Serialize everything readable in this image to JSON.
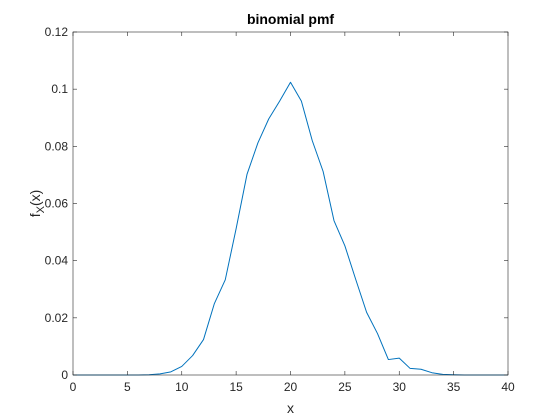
{
  "chart_data": {
    "type": "line",
    "title": "binomial pmf",
    "xlabel": "x",
    "ylabel": {
      "main": "f",
      "subscript": "X",
      "suffix": "(x)"
    },
    "xlim": [
      0,
      40
    ],
    "ylim": [
      0,
      0.12
    ],
    "xticks": [
      "0",
      "5",
      "10",
      "15",
      "20",
      "25",
      "30",
      "35",
      "40"
    ],
    "yticks": [
      "0",
      "0.02",
      "0.04",
      "0.06",
      "0.08",
      "0.1",
      "0.12"
    ],
    "grid": false,
    "series": [
      {
        "color": "#0072bd",
        "x": [
          0,
          1,
          2,
          3,
          4,
          5,
          6,
          7,
          8,
          9,
          10,
          11,
          12,
          13,
          14,
          15,
          16,
          17,
          18,
          19,
          20,
          21,
          22,
          23,
          24,
          25,
          26,
          27,
          28,
          29,
          30,
          31,
          32,
          33,
          34,
          35,
          36,
          37,
          38,
          39,
          40
        ],
        "y": [
          0,
          0,
          0,
          0,
          0,
          0,
          0,
          0.0001,
          0.0004,
          0.0011,
          0.003,
          0.0068,
          0.0124,
          0.025,
          0.0333,
          0.0512,
          0.0702,
          0.0812,
          0.0896,
          0.0958,
          0.1024,
          0.0958,
          0.082,
          0.0712,
          0.054,
          0.0452,
          0.0334,
          0.0219,
          0.0145,
          0.0054,
          0.0059,
          0.0023,
          0.002,
          0.0008,
          0.0002,
          0.0001,
          0,
          0,
          0,
          0,
          0
        ]
      }
    ]
  }
}
